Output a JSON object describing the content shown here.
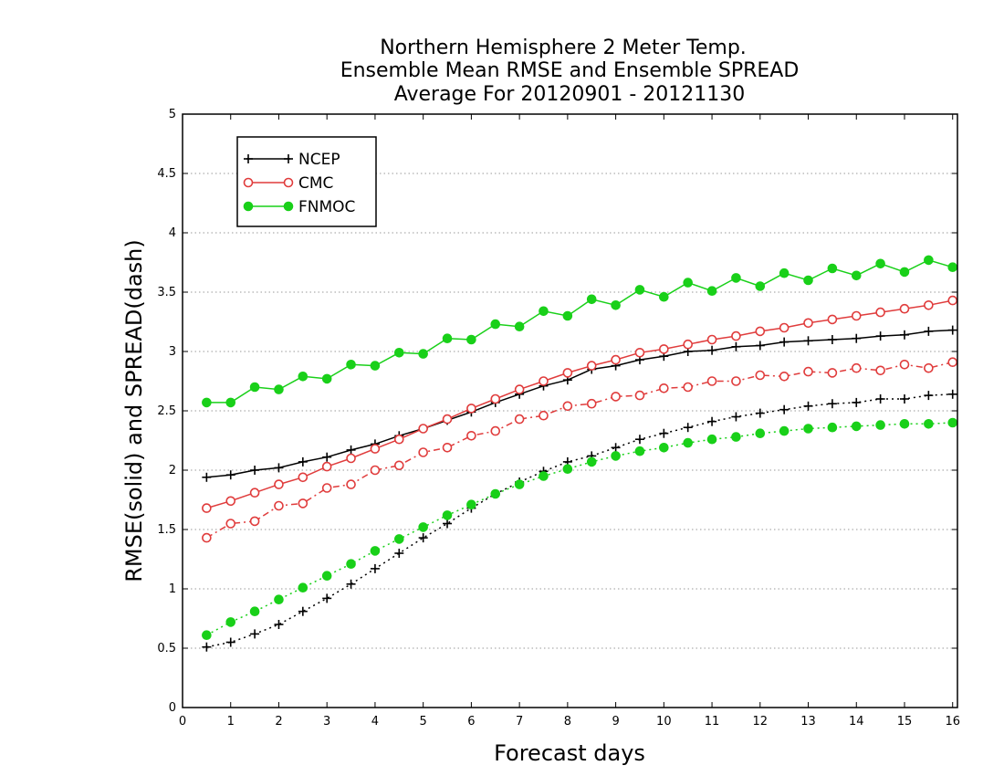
{
  "chart_data": {
    "type": "line",
    "title": [
      "Northern Hemisphere 2 Meter Temp.",
      "Ensemble Mean RMSE and Ensemble SPREAD",
      "Average For 20120901 - 20121130"
    ],
    "xlabel": "Forecast days",
    "ylabel": "RMSE(solid) and SPREAD(dash)",
    "xlim": [
      0,
      16.1
    ],
    "ylim": [
      0,
      5
    ],
    "xticks": [
      "0",
      "1",
      "2",
      "3",
      "4",
      "5",
      "6",
      "7",
      "8",
      "9",
      "10",
      "11",
      "12",
      "13",
      "14",
      "15",
      "16"
    ],
    "yticks": [
      "0",
      "0.5",
      "1",
      "1.5",
      "2",
      "2.5",
      "3",
      "3.5",
      "4",
      "4.5",
      "5"
    ],
    "grid": "horizontal dotted",
    "legend_position": "top-left",
    "x": [
      0.5,
      1,
      1.5,
      2,
      2.5,
      3,
      3.5,
      4,
      4.5,
      5,
      5.5,
      6,
      6.5,
      7,
      7.5,
      8,
      8.5,
      9,
      9.5,
      10,
      10.5,
      11,
      11.5,
      12,
      12.5,
      13,
      13.5,
      14,
      14.5,
      15,
      15.5,
      16
    ],
    "series": [
      {
        "name": "NCEP",
        "kind": "rmse",
        "style": "solid",
        "marker": "plus",
        "color": "#000000",
        "values": [
          1.94,
          1.96,
          2.0,
          2.02,
          2.07,
          2.11,
          2.17,
          2.22,
          2.29,
          2.35,
          2.42,
          2.49,
          2.57,
          2.64,
          2.71,
          2.76,
          2.85,
          2.88,
          2.93,
          2.96,
          3.0,
          3.01,
          3.04,
          3.05,
          3.08,
          3.09,
          3.1,
          3.11,
          3.13,
          3.14,
          3.17,
          3.18
        ]
      },
      {
        "name": "NCEP",
        "kind": "spread",
        "style": "dotted",
        "marker": "plus",
        "color": "#000000",
        "values": [
          0.51,
          0.55,
          0.62,
          0.7,
          0.81,
          0.92,
          1.04,
          1.17,
          1.3,
          1.43,
          1.55,
          1.68,
          1.8,
          1.9,
          1.99,
          2.07,
          2.12,
          2.19,
          2.26,
          2.31,
          2.36,
          2.41,
          2.45,
          2.48,
          2.51,
          2.54,
          2.56,
          2.57,
          2.6,
          2.6,
          2.63,
          2.64
        ]
      },
      {
        "name": "CMC",
        "kind": "rmse",
        "style": "solid",
        "marker": "open-circle",
        "color": "#e03c3c",
        "values": [
          1.68,
          1.74,
          1.81,
          1.88,
          1.94,
          2.03,
          2.1,
          2.18,
          2.26,
          2.35,
          2.43,
          2.52,
          2.6,
          2.68,
          2.75,
          2.82,
          2.88,
          2.93,
          2.99,
          3.02,
          3.06,
          3.1,
          3.13,
          3.17,
          3.2,
          3.24,
          3.27,
          3.3,
          3.33,
          3.36,
          3.39,
          3.43
        ]
      },
      {
        "name": "CMC",
        "kind": "spread",
        "style": "dash-dot",
        "marker": "open-circle",
        "color": "#e03c3c",
        "values": [
          1.43,
          1.55,
          1.57,
          1.7,
          1.72,
          1.85,
          1.88,
          2.0,
          2.04,
          2.15,
          2.19,
          2.29,
          2.33,
          2.43,
          2.46,
          2.54,
          2.56,
          2.62,
          2.63,
          2.69,
          2.7,
          2.75,
          2.75,
          2.8,
          2.79,
          2.83,
          2.82,
          2.86,
          2.84,
          2.89,
          2.86,
          2.91
        ]
      },
      {
        "name": "FNMOC",
        "kind": "rmse",
        "style": "solid",
        "marker": "filled-circle",
        "color": "#19d019",
        "values": [
          2.57,
          2.57,
          2.7,
          2.68,
          2.79,
          2.77,
          2.89,
          2.88,
          2.99,
          2.98,
          3.11,
          3.1,
          3.23,
          3.21,
          3.34,
          3.3,
          3.44,
          3.39,
          3.52,
          3.46,
          3.58,
          3.51,
          3.62,
          3.55,
          3.66,
          3.6,
          3.7,
          3.64,
          3.74,
          3.67,
          3.77,
          3.71
        ]
      },
      {
        "name": "FNMOC",
        "kind": "spread",
        "style": "dotted",
        "marker": "filled-circle",
        "color": "#19d019",
        "values": [
          0.61,
          0.72,
          0.81,
          0.91,
          1.01,
          1.11,
          1.21,
          1.32,
          1.42,
          1.52,
          1.62,
          1.71,
          1.8,
          1.88,
          1.95,
          2.01,
          2.07,
          2.12,
          2.16,
          2.19,
          2.23,
          2.26,
          2.28,
          2.31,
          2.33,
          2.35,
          2.36,
          2.37,
          2.38,
          2.39,
          2.39,
          2.4
        ]
      }
    ],
    "legend": [
      {
        "label": "NCEP",
        "marker": "plus",
        "color": "#000000"
      },
      {
        "label": "CMC",
        "marker": "open-circle",
        "color": "#e03c3c"
      },
      {
        "label": "FNMOC",
        "marker": "filled-circle",
        "color": "#19d019"
      }
    ]
  }
}
